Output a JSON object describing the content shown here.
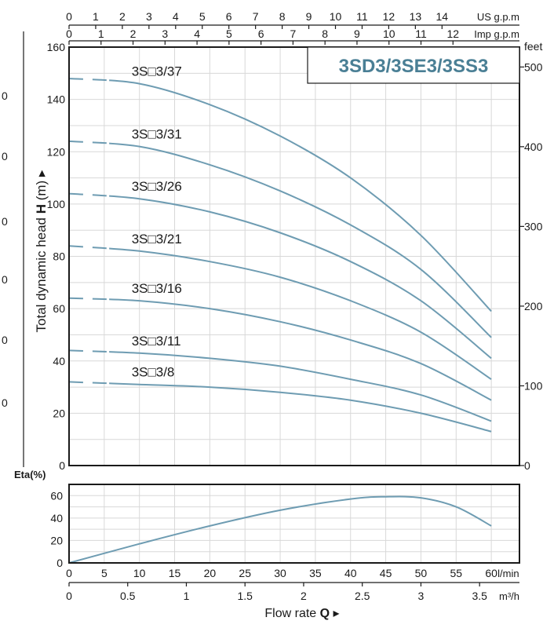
{
  "title": "3SD3/3SE3/3SS3",
  "colors": {
    "curve": "#6e9cb2",
    "title": "#4a7f95",
    "grid": "#d8d8d8",
    "frame": "#1a1a1a"
  },
  "chart_data": [
    {
      "type": "line",
      "name": "head",
      "ylabel_prefix": "Total dynamic head ",
      "ylabel_bold": "H",
      "ylabel_suffix": " (m) ▸",
      "ylim": [
        0,
        160
      ],
      "yticks": [
        0,
        20,
        40,
        60,
        80,
        100,
        120,
        140,
        160
      ],
      "right_axis": {
        "label": "feet",
        "ticks": [
          0,
          100,
          200,
          300,
          400,
          500
        ]
      },
      "left_partial_ticks": [
        "0",
        "0",
        "0",
        "0",
        "0",
        "0"
      ],
      "top_axes": [
        {
          "label": "US g.p.m",
          "ticks": [
            0,
            1,
            2,
            3,
            4,
            5,
            6,
            7,
            8,
            9,
            10,
            11,
            12,
            13,
            14
          ]
        },
        {
          "label": "Imp g.p.m",
          "ticks": [
            0,
            1,
            2,
            3,
            4,
            5,
            6,
            7,
            8,
            9,
            10,
            11,
            12
          ]
        }
      ],
      "x_unit": "l/min",
      "xlim": [
        0,
        64
      ],
      "grid": true,
      "series": [
        {
          "name": "3S□3/37",
          "x": [
            0,
            10,
            20,
            30,
            40,
            50,
            60
          ],
          "values": [
            148,
            146,
            138,
            126,
            110,
            88,
            59
          ]
        },
        {
          "name": "3S□3/31",
          "x": [
            0,
            10,
            20,
            30,
            40,
            50,
            60
          ],
          "values": [
            124,
            122,
            115,
            105,
            92,
            75,
            49
          ]
        },
        {
          "name": "3S□3/26",
          "x": [
            0,
            10,
            20,
            30,
            40,
            50,
            60
          ],
          "values": [
            104,
            102,
            97,
            89,
            78,
            63,
            41
          ]
        },
        {
          "name": "3S□3/21",
          "x": [
            0,
            10,
            20,
            30,
            40,
            50,
            60
          ],
          "values": [
            84,
            82,
            78,
            72,
            63,
            51,
            33
          ]
        },
        {
          "name": "3S□3/16",
          "x": [
            0,
            10,
            20,
            30,
            40,
            50,
            60
          ],
          "values": [
            64,
            63,
            60,
            55,
            48,
            39,
            25
          ]
        },
        {
          "name": "3S□3/11",
          "x": [
            0,
            10,
            20,
            30,
            40,
            50,
            60
          ],
          "values": [
            44,
            43,
            41,
            38,
            33,
            27,
            17
          ]
        },
        {
          "name": "3S□3/8",
          "x": [
            0,
            10,
            20,
            30,
            40,
            50,
            60
          ],
          "values": [
            32,
            31,
            30,
            28,
            25,
            20,
            13
          ]
        }
      ],
      "dashed_until_x": 5.7
    },
    {
      "type": "line",
      "name": "efficiency",
      "ylabel": "Eta(%)",
      "ylim": [
        0,
        70
      ],
      "yticks": [
        0,
        20,
        40,
        60
      ],
      "xlim": [
        0,
        64
      ],
      "grid": true,
      "series": [
        {
          "x": [
            0,
            10,
            20,
            30,
            40,
            45,
            50,
            55,
            60
          ],
          "values": [
            0,
            17,
            33,
            47,
            57,
            59,
            58,
            50,
            33
          ]
        }
      ]
    }
  ],
  "x_axis": {
    "ticks": [
      0,
      5,
      10,
      15,
      20,
      25,
      30,
      35,
      40,
      45,
      50,
      55,
      60
    ],
    "unit": "l/min",
    "m3h_ticks": [
      "0",
      "0.5",
      "1",
      "1.5",
      "2",
      "2.5",
      "3",
      "3.5"
    ],
    "m3h_unit": "m³/h",
    "label_text": "Flow rate ",
    "label_bold": "Q",
    "label_arrow": " ▸"
  }
}
